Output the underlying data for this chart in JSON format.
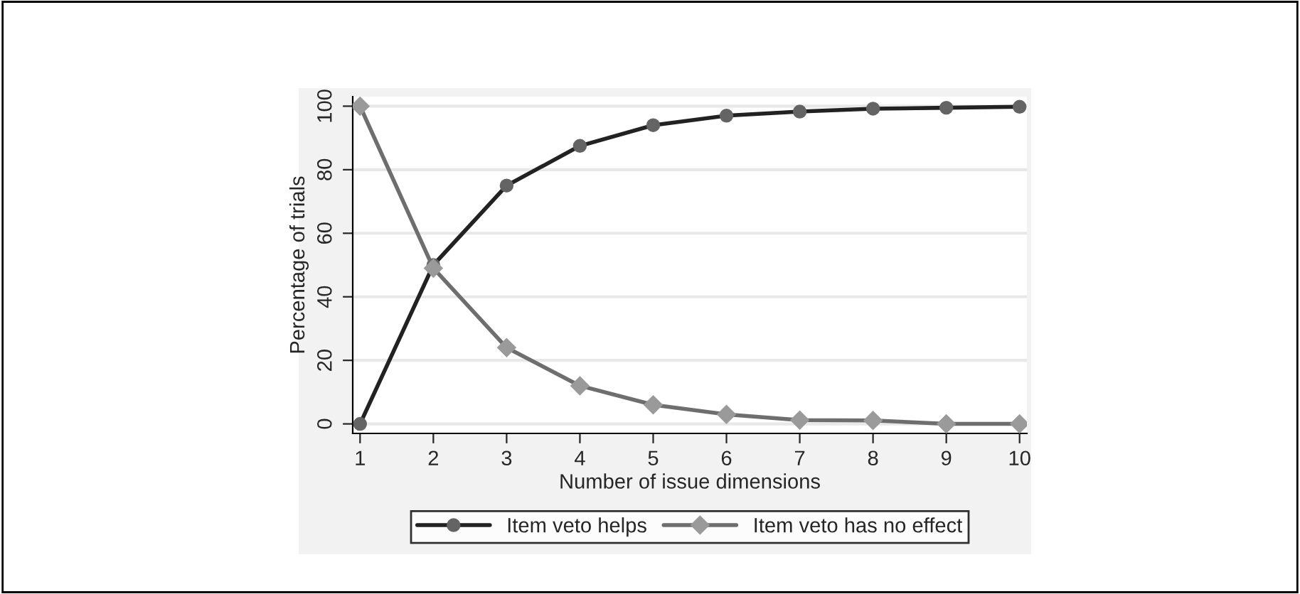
{
  "chart_data": {
    "type": "line",
    "xlabel": "Number of issue dimensions",
    "ylabel": "Percentage of trials",
    "x": [
      1,
      2,
      3,
      4,
      5,
      6,
      7,
      8,
      9,
      10
    ],
    "series": [
      {
        "name": "Item veto helps",
        "color": "#222222",
        "marker": "circle",
        "values": [
          0,
          50,
          75,
          87.5,
          94,
          97,
          98.3,
          99.2,
          99.5,
          99.8
        ]
      },
      {
        "name": "Item veto has no effect",
        "color": "#6e6e6e",
        "marker": "diamond",
        "values": [
          100,
          49,
          24,
          12,
          6,
          3,
          1.2,
          1.1,
          0,
          0
        ]
      }
    ],
    "xlim": [
      0.9,
      10.1
    ],
    "ylim": [
      -3,
      103
    ],
    "xticks": [
      1,
      2,
      3,
      4,
      5,
      6,
      7,
      8,
      9,
      10
    ],
    "yticks": [
      0,
      20,
      40,
      60,
      80,
      100
    ],
    "grid": "y",
    "legend": "bottom",
    "line_style": "solid"
  }
}
